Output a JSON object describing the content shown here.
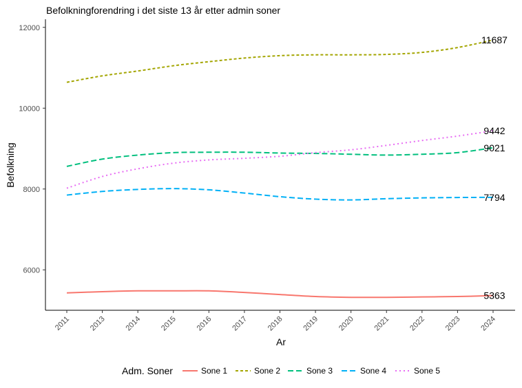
{
  "chart_data": {
    "type": "line",
    "title": "Befolkningforendring i det siste 13 år etter admin soner",
    "xlabel": "Ar",
    "ylabel": "Befolkning",
    "x": [
      2011,
      2013,
      2014,
      2015,
      2016,
      2017,
      2018,
      2019,
      2020,
      2021,
      2022,
      2023,
      2024
    ],
    "x_tick_labels": [
      "2011",
      "2013",
      "2014",
      "2015",
      "2016",
      "2017",
      "2018",
      "2019",
      "2020",
      "2021",
      "2022",
      "2023",
      "2024"
    ],
    "ylim": [
      5000,
      12200
    ],
    "y_ticks": [
      6000,
      8000,
      10000,
      12000
    ],
    "y_tick_labels": [
      "6000",
      "8000",
      "10000",
      "12000"
    ],
    "grid": false,
    "legend_title": "Adm. Soner",
    "legend_position": "bottom",
    "series": [
      {
        "name": "Sone 1",
        "color": "#F8766D",
        "dash": "solid",
        "end_label": "5363",
        "values": [
          5430,
          5460,
          5480,
          5480,
          5480,
          5440,
          5390,
          5340,
          5320,
          5320,
          5330,
          5340,
          5363
        ]
      },
      {
        "name": "Sone 2",
        "color": "#A3A500",
        "dash": "short",
        "end_label": "11687",
        "values": [
          10640,
          10800,
          10920,
          11050,
          11150,
          11240,
          11300,
          11320,
          11320,
          11330,
          11380,
          11500,
          11687
        ]
      },
      {
        "name": "Sone 3",
        "color": "#00BF7D",
        "dash": "long",
        "end_label": "9021",
        "values": [
          8560,
          8740,
          8840,
          8900,
          8910,
          8910,
          8890,
          8880,
          8860,
          8840,
          8860,
          8900,
          9021
        ]
      },
      {
        "name": "Sone 4",
        "color": "#00B0F6",
        "dash": "long",
        "end_label": "7794",
        "values": [
          7850,
          7940,
          7990,
          8010,
          7980,
          7900,
          7810,
          7750,
          7730,
          7760,
          7780,
          7790,
          7794
        ]
      },
      {
        "name": "Sone 5",
        "color": "#E76BF3",
        "dash": "dotted",
        "end_label": "9442",
        "values": [
          8020,
          8310,
          8500,
          8640,
          8720,
          8760,
          8810,
          8900,
          8970,
          9080,
          9200,
          9310,
          9442
        ]
      }
    ]
  }
}
